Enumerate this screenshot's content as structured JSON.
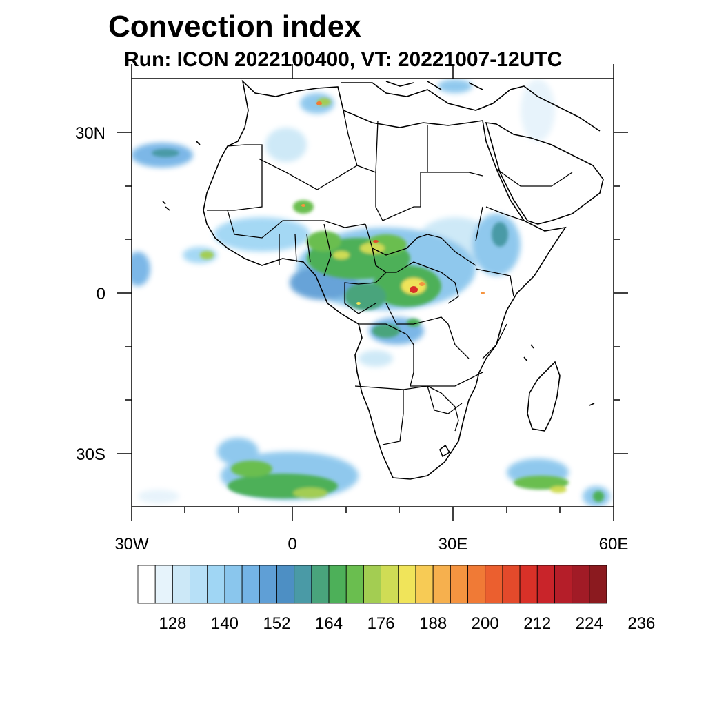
{
  "title": "Convection index",
  "subtitle": "Run: ICON 2022100400,  VT: 20221007-12UTC",
  "map": {
    "region": "Africa",
    "lon_range": [
      -30,
      60
    ],
    "lat_range": [
      -40,
      40
    ],
    "lat_tick_labels": [
      "30N",
      "0",
      "30S"
    ],
    "lon_tick_labels": [
      "30W",
      "0",
      "30E",
      "60E"
    ]
  },
  "colorbar": {
    "labels": [
      "128",
      "140",
      "152",
      "164",
      "176",
      "188",
      "200",
      "212",
      "224",
      "236"
    ],
    "colors": [
      "#ffffff",
      "#e6f3fb",
      "#cce8f7",
      "#b7e0f7",
      "#a0d6f4",
      "#8ac6ed",
      "#74b4e6",
      "#5f9fd6",
      "#4d8fc4",
      "#4a9aa6",
      "#49a47c",
      "#4db059",
      "#6abe4f",
      "#a3cd52",
      "#cfdc55",
      "#f0e45a",
      "#f7cb55",
      "#f6b04e",
      "#f59440",
      "#f07a36",
      "#eb5f2f",
      "#e34a2b",
      "#d93128",
      "#c9242a",
      "#b51e29",
      "#a11b26",
      "#8b1a1f"
    ]
  }
}
